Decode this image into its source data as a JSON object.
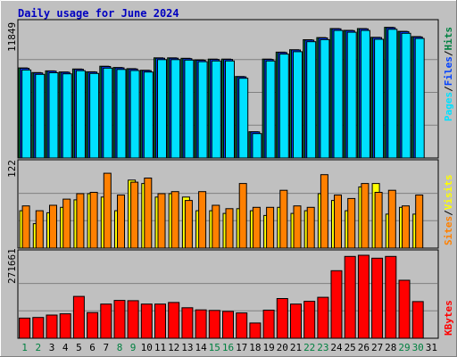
{
  "chart_data": {
    "type": "bar",
    "title": "Daily usage for June 2024",
    "categories": [
      "1",
      "2",
      "3",
      "4",
      "5",
      "6",
      "7",
      "8",
      "9",
      "10",
      "11",
      "12",
      "13",
      "14",
      "15",
      "16",
      "17",
      "18",
      "19",
      "20",
      "21",
      "22",
      "23",
      "24",
      "25",
      "26",
      "27",
      "28",
      "29",
      "30",
      "31"
    ],
    "weekend_days": [
      1,
      2,
      8,
      9,
      15,
      16,
      22,
      23,
      29,
      30
    ],
    "panels": [
      {
        "id": "pages-files-hits",
        "ymax_label": "11849",
        "ymax": 11849,
        "legend_parts": [
          "Pages",
          "Files",
          "Hits"
        ],
        "legend_colors": [
          "#00e0ff",
          "#0040ff",
          "#008040"
        ],
        "series": [
          {
            "name": "Hits",
            "color": "#008040",
            "values": [
              8130,
              7710,
              7870,
              7770,
              8040,
              7790,
              8290,
              8170,
              8070,
              7920,
              9040,
              9040,
              9000,
              8860,
              8930,
              8930,
              7360,
              2370,
              8930,
              9560,
              9780,
              10680,
              10870,
              11690,
              11530,
              11690,
              10900,
              11800,
              11440,
              10960,
              0
            ]
          },
          {
            "name": "Files",
            "color": "#0040ff",
            "values": [
              8100,
              7680,
              7840,
              7740,
              8010,
              7760,
              8260,
              8140,
              8040,
              7890,
              9010,
              9010,
              8970,
              8830,
              8900,
              8900,
              7330,
              2350,
              8900,
              9530,
              9750,
              10650,
              10840,
              11660,
              11500,
              11660,
              10870,
              11770,
              11410,
              10930,
              0
            ]
          },
          {
            "name": "Pages",
            "color": "#00e0ff",
            "values": [
              7950,
              7550,
              7700,
              7600,
              7880,
              7630,
              8120,
              8000,
              7900,
              7760,
              8880,
              8880,
              8840,
              8700,
              8760,
              8760,
              7200,
              2200,
              8760,
              9380,
              9600,
              10500,
              10690,
              11520,
              11360,
              11520,
              10720,
              11620,
              11260,
              10790,
              0
            ]
          }
        ]
      },
      {
        "id": "visits-sites",
        "ymax_label": "122",
        "ymax": 122,
        "legend_parts": [
          "Sites",
          "Visits"
        ],
        "legend_colors": [
          "#ff8000",
          "#ffff00"
        ],
        "series": [
          {
            "name": "Visits",
            "color": "#ffff00",
            "values": [
              55,
              36,
              52,
              60,
              71,
              80,
              75,
              55,
              100,
              95,
              75,
              80,
              75,
              55,
              55,
              51,
              58,
              55,
              48,
              60,
              51,
              55,
              80,
              70,
              55,
              90,
              95,
              50,
              60,
              50,
              0
            ]
          },
          {
            "name": "Sites",
            "color": "#ff8000",
            "values": [
              62,
              55,
              63,
              72,
              80,
              82,
              110,
              78,
              97,
              103,
              80,
              83,
              70,
              83,
              63,
              58,
              95,
              60,
              60,
              85,
              62,
              60,
              108,
              78,
              73,
              95,
              82,
              85,
              62,
              78,
              0
            ]
          }
        ]
      },
      {
        "id": "kbytes",
        "ymax_label": "271661",
        "ymax": 271661,
        "legend_parts": [
          "KBytes"
        ],
        "legend_colors": [
          "#ff0000"
        ],
        "series": [
          {
            "name": "KBytes",
            "color": "#ff0000",
            "values": [
              66000,
              68000,
              76000,
              80000,
              137000,
              84000,
              112000,
              124000,
              123000,
              112000,
              112000,
              117000,
              100000,
              93000,
              91000,
              88000,
              83000,
              50000,
              92000,
              130000,
              112000,
              121000,
              134000,
              221000,
              268000,
              271661,
              262000,
              268000,
              190000,
              120000,
              0
            ]
          }
        ]
      }
    ]
  }
}
